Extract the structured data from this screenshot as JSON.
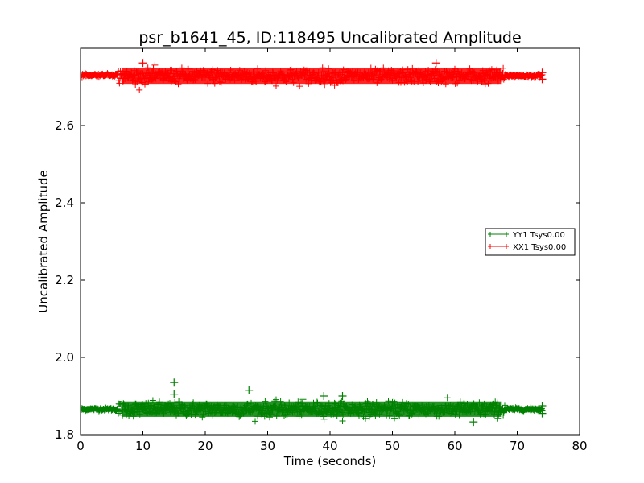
{
  "chart_data": {
    "type": "scatter",
    "title": "psr_b1641_45, ID:118495 Uncalibrated Amplitude",
    "xlabel": "Time (seconds)",
    "ylabel": "Uncalibrated Amplitude",
    "xlim": [
      0,
      80
    ],
    "ylim": [
      1.8,
      2.8
    ],
    "xticks": [
      "0",
      "10",
      "20",
      "30",
      "40",
      "50",
      "60",
      "70",
      "80"
    ],
    "yticks": [
      "1.8",
      "2.0",
      "2.2",
      "2.4",
      "2.6"
    ],
    "xtick_values": [
      0,
      10,
      20,
      30,
      40,
      50,
      60,
      70,
      80
    ],
    "ytick_values": [
      1.8,
      2.0,
      2.2,
      2.4,
      2.6
    ],
    "grid": false,
    "legend_position": "center-right",
    "marker": "plus",
    "series": [
      {
        "name": "YY1 Tsys0.00",
        "color": "#008000",
        "segments": [
          {
            "x_start": 0.0,
            "x_end": 6.0,
            "mean": 1.866,
            "spread": 0.004
          },
          {
            "x_start": 6.0,
            "x_end": 68.0,
            "mean": 1.866,
            "spread": 0.02
          },
          {
            "x_start": 68.0,
            "x_end": 74.0,
            "mean": 1.866,
            "spread": 0.004
          }
        ],
        "outliers": [
          [
            15.0,
            1.935
          ],
          [
            15.0,
            1.905
          ],
          [
            27.0,
            1.915
          ],
          [
            39.0,
            1.9
          ],
          [
            42.0,
            1.9
          ],
          [
            63.0,
            1.833
          ],
          [
            74.0,
            1.875
          ],
          [
            74.0,
            1.855
          ]
        ]
      },
      {
        "name": "XX1 Tsys0.00",
        "color": "#ff0000",
        "segments": [
          {
            "x_start": 0.0,
            "x_end": 6.0,
            "mean": 2.731,
            "spread": 0.004
          },
          {
            "x_start": 6.0,
            "x_end": 68.0,
            "mean": 2.728,
            "spread": 0.02
          },
          {
            "x_start": 68.0,
            "x_end": 74.0,
            "mean": 2.729,
            "spread": 0.004
          }
        ],
        "outliers": [
          [
            10.0,
            2.762
          ],
          [
            57.0,
            2.762
          ],
          [
            74.0,
            2.737
          ],
          [
            74.0,
            2.72
          ]
        ]
      }
    ]
  }
}
